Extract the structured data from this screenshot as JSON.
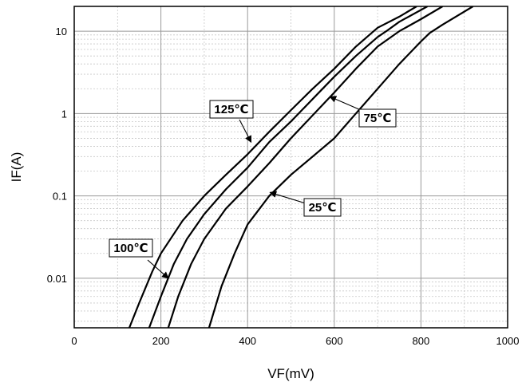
{
  "chart_data": {
    "type": "line",
    "xlabel": "VF(mV)",
    "ylabel": "IF(A)",
    "xlim": [
      0,
      1000
    ],
    "ylim": [
      0.0025,
      20
    ],
    "yscale": "log",
    "grid": true,
    "x_ticks": [
      "0",
      "200",
      "400",
      "600",
      "800",
      "1000"
    ],
    "y_ticks": [
      "0.01",
      "0.1",
      "1",
      "10"
    ],
    "line_color": "#000000",
    "series": [
      {
        "name": "125℃",
        "points": [
          [
            127,
            0.0025
          ],
          [
            150,
            0.005
          ],
          [
            180,
            0.012
          ],
          [
            200,
            0.02
          ],
          [
            250,
            0.05
          ],
          [
            300,
            0.1
          ],
          [
            350,
            0.18
          ],
          [
            400,
            0.32
          ],
          [
            450,
            0.6
          ],
          [
            500,
            1.1
          ],
          [
            550,
            2
          ],
          [
            600,
            3.5
          ],
          [
            650,
            6.5
          ],
          [
            700,
            11
          ],
          [
            750,
            15
          ],
          [
            790,
            20
          ]
        ]
      },
      {
        "name": "100℃",
        "points": [
          [
            173,
            0.0025
          ],
          [
            200,
            0.006
          ],
          [
            230,
            0.015
          ],
          [
            260,
            0.03
          ],
          [
            300,
            0.06
          ],
          [
            350,
            0.12
          ],
          [
            400,
            0.22
          ],
          [
            450,
            0.45
          ],
          [
            500,
            0.8
          ],
          [
            550,
            1.5
          ],
          [
            600,
            2.8
          ],
          [
            650,
            5
          ],
          [
            700,
            8.5
          ],
          [
            720,
            10
          ],
          [
            750,
            13
          ],
          [
            815,
            20
          ]
        ]
      },
      {
        "name": "75℃",
        "points": [
          [
            217,
            0.0025
          ],
          [
            240,
            0.006
          ],
          [
            270,
            0.015
          ],
          [
            300,
            0.03
          ],
          [
            350,
            0.07
          ],
          [
            400,
            0.13
          ],
          [
            450,
            0.25
          ],
          [
            500,
            0.5
          ],
          [
            550,
            0.95
          ],
          [
            600,
            1.8
          ],
          [
            650,
            3.5
          ],
          [
            700,
            6.5
          ],
          [
            750,
            10
          ],
          [
            800,
            14
          ],
          [
            850,
            20
          ]
        ]
      },
      {
        "name": "25℃",
        "points": [
          [
            311,
            0.0025
          ],
          [
            340,
            0.008
          ],
          [
            370,
            0.02
          ],
          [
            400,
            0.045
          ],
          [
            450,
            0.1
          ],
          [
            500,
            0.18
          ],
          [
            550,
            0.3
          ],
          [
            600,
            0.5
          ],
          [
            650,
            1
          ],
          [
            700,
            2
          ],
          [
            750,
            4
          ],
          [
            800,
            7.5
          ],
          [
            820,
            9.5
          ],
          [
            850,
            12
          ],
          [
            920,
            20
          ]
        ]
      }
    ],
    "annotations": [
      {
        "label": "125℃",
        "series": "125℃",
        "at": [
          408,
          0.45
        ]
      },
      {
        "label": "100℃",
        "series": "100℃",
        "at": [
          217,
          0.01
        ]
      },
      {
        "label": "75℃",
        "series": "75℃",
        "at": [
          590,
          1.6
        ]
      },
      {
        "label": "25℃",
        "series": "25℃",
        "at": [
          452,
          0.11
        ]
      }
    ]
  }
}
